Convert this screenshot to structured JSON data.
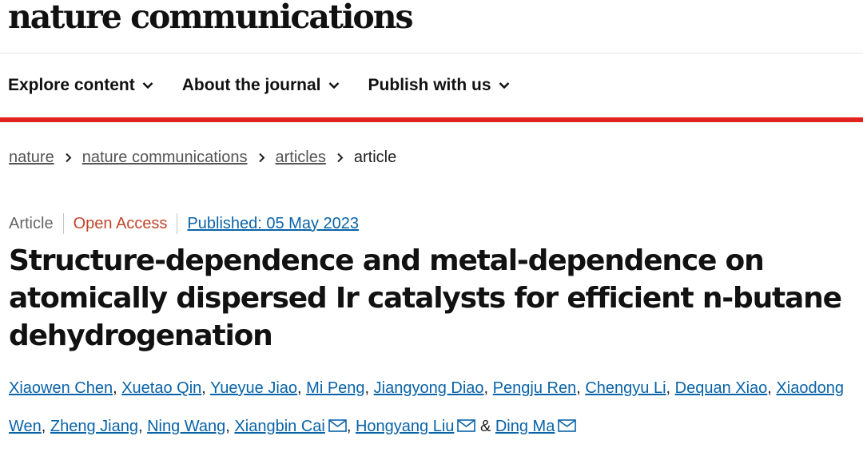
{
  "header": {
    "logo": "nature communications"
  },
  "nav": {
    "items": [
      {
        "label": "Explore content"
      },
      {
        "label": "About the journal"
      },
      {
        "label": "Publish with us"
      }
    ]
  },
  "colors": {
    "accent_red": "#e0231c",
    "link_blue": "#0a63a8",
    "open_access": "#c0462b"
  },
  "breadcrumb": [
    {
      "label": "nature"
    },
    {
      "label": "nature communications"
    },
    {
      "label": "articles"
    },
    {
      "label": "article"
    }
  ],
  "article": {
    "type": "Article",
    "access": "Open Access",
    "published": "Published: 05 May 2023",
    "title": "Structure-dependence and metal-dependence on atomically dispersed Ir catalysts for efficient n-butane dehydrogenation",
    "authors": [
      {
        "name": "Xiaowen Chen",
        "sep": ", "
      },
      {
        "name": "Xuetao Qin",
        "sep": ", "
      },
      {
        "name": "Yueyue Jiao",
        "sep": ", "
      },
      {
        "name": "Mi Peng",
        "sep": ", "
      },
      {
        "name": "Jiangyong Diao",
        "sep": ", "
      },
      {
        "name": "Pengju Ren",
        "sep": ", "
      },
      {
        "name": "Chengyu Li",
        "sep": ", "
      },
      {
        "name": "Dequan Xiao",
        "sep": ", "
      },
      {
        "name": "Xiaodong Wen",
        "sep": ", "
      },
      {
        "name": "Zheng Jiang",
        "sep": ", "
      },
      {
        "name": "Ning Wang",
        "sep": ", "
      },
      {
        "name": "Xiangbin Cai",
        "sep": ", ",
        "contact": true
      },
      {
        "name": "Hongyang Liu",
        "sep": " & ",
        "contact": true
      },
      {
        "name": "Ding Ma",
        "sep": "",
        "contact": true
      }
    ]
  }
}
